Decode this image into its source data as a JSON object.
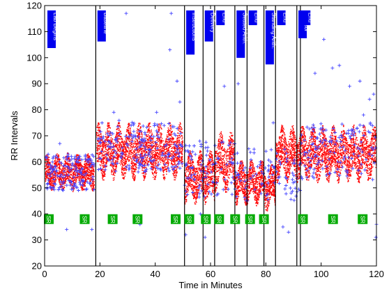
{
  "chart_data": {
    "type": "scatter",
    "title": "",
    "xlabel": "Time in Minutes",
    "ylabel": "RR Intervals",
    "xlim": [
      0,
      120
    ],
    "ylim": [
      20,
      120
    ],
    "xticks": [
      0,
      20,
      40,
      60,
      80,
      100,
      120
    ],
    "yticks": [
      20,
      30,
      40,
      50,
      60,
      70,
      80,
      90,
      100,
      110,
      120
    ],
    "grid": false,
    "colors": {
      "series_red": "#ff0000",
      "series_blue": "#4444ff",
      "event_box": "#0000ee",
      "sr_box": "#00aa00",
      "line": "#000000"
    },
    "event_lines_x": [
      18.5,
      50.6,
      57.3,
      61.5,
      68.8,
      73.2,
      79.3,
      83.5,
      91.2,
      92.5
    ],
    "event_labels": [
      {
        "x": 1,
        "text": "Lab Begins"
      },
      {
        "x": 19.1,
        "text": "Baseline"
      },
      {
        "x": 51.2,
        "text": "Instructions"
      },
      {
        "x": 57.9,
        "text": "Delivery"
      },
      {
        "x": 62.1,
        "text": "End"
      },
      {
        "x": 69.4,
        "text": "Seated Arith."
      },
      {
        "x": 73.8,
        "text": "End"
      },
      {
        "x": 79.9,
        "text": "Standing Arith."
      },
      {
        "x": 84.1,
        "text": "End"
      },
      {
        "x": 91.8,
        "text": "Pressor"
      },
      {
        "x": 93.1,
        "text": "End"
      }
    ],
    "sr_label": "SR",
    "sr_marker_x": [
      1.5,
      14.5,
      24.6,
      33.6,
      47.4,
      52.3,
      58.3,
      63.1,
      68.9,
      74.3,
      79.3,
      93.4,
      104.3,
      115.0
    ],
    "sr_marker_y": 38,
    "series": [
      {
        "marker": "dot",
        "segments": [
          {
            "x0": 0.3,
            "x1": 18.0,
            "center": 56,
            "spread": 10,
            "density": 90
          },
          {
            "x0": 18.8,
            "x1": 50.0,
            "center": 64,
            "spread": 15,
            "density": 90
          },
          {
            "x0": 50.6,
            "x1": 61.5,
            "center": 54,
            "spread": 14,
            "density": 90
          },
          {
            "x0": 61.5,
            "x1": 68.8,
            "center": 60,
            "spread": 16,
            "density": 90
          },
          {
            "x0": 68.8,
            "x1": 79.3,
            "center": 52,
            "spread": 12,
            "density": 90
          },
          {
            "x0": 79.3,
            "x1": 83.5,
            "center": 50,
            "spread": 12,
            "density": 90
          },
          {
            "x0": 83.5,
            "x1": 120.0,
            "center": 63,
            "spread": 15,
            "density": 90
          }
        ]
      },
      {
        "marker": "plus",
        "segments": [
          {
            "x0": 0.3,
            "x1": 18.0,
            "center": 56,
            "spread": 14,
            "density": 8
          },
          {
            "x0": 18.8,
            "x1": 50.0,
            "center": 66,
            "spread": 20,
            "density": 6
          },
          {
            "x0": 50.6,
            "x1": 68.8,
            "center": 57,
            "spread": 22,
            "density": 5
          },
          {
            "x0": 68.8,
            "x1": 92.5,
            "center": 55,
            "spread": 20,
            "density": 4
          },
          {
            "x0": 92.5,
            "x1": 120.0,
            "center": 64,
            "spread": 22,
            "density": 5
          }
        ],
        "outliers": [
          [
            29.5,
            117
          ],
          [
            45.8,
            117
          ],
          [
            45.3,
            103
          ],
          [
            47.9,
            91
          ],
          [
            48.9,
            83
          ],
          [
            65.0,
            89
          ],
          [
            97.8,
            94
          ],
          [
            101.0,
            107
          ],
          [
            104.1,
            96
          ],
          [
            106.6,
            97
          ],
          [
            110.3,
            89
          ],
          [
            117.5,
            84
          ],
          [
            119.0,
            86
          ],
          [
            119.8,
            31
          ],
          [
            86.2,
            35
          ],
          [
            51.0,
            32
          ],
          [
            58.0,
            31
          ],
          [
            34.5,
            36
          ],
          [
            8.0,
            34
          ],
          [
            17.1,
            34
          ],
          [
            56.4,
            40
          ],
          [
            88.2,
            33
          ],
          [
            120.0,
            36
          ],
          [
            82.7,
            75
          ],
          [
            70.0,
            90
          ],
          [
            114.0,
            91
          ],
          [
            115.3,
            78
          ],
          [
            5.5,
            67
          ],
          [
            25.0,
            79
          ],
          [
            40.5,
            79
          ]
        ]
      }
    ]
  }
}
